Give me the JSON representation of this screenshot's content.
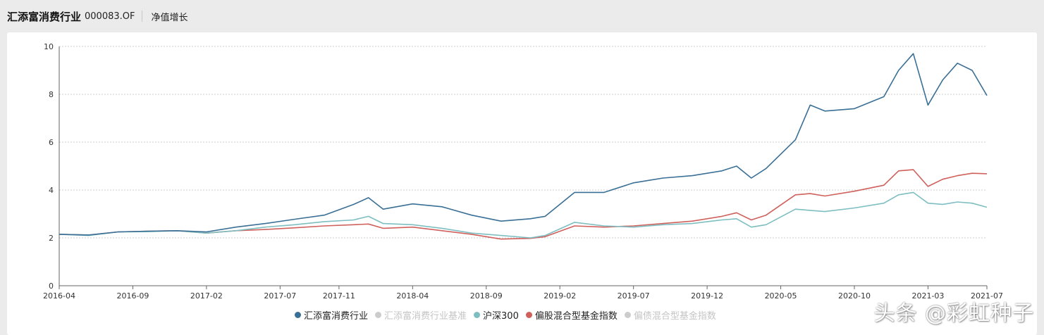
{
  "header": {
    "fund_name": "汇添富消费行业",
    "fund_code": "000083.OF",
    "tab": "净值增长"
  },
  "watermark": "头条 @彩虹种子",
  "colors": {
    "fund": "#3a6f96",
    "benchmark": "#cccccc",
    "hs300": "#7ebec1",
    "partial_equity": "#cf605c",
    "partial_bond": "#cccccc",
    "grid": "#cfcfcf",
    "axis": "#666666"
  },
  "legend": [
    {
      "label": "汇添富消费行业",
      "color": "#3a6f96",
      "active": true
    },
    {
      "label": "汇添富消费行业基准",
      "color": "#cccccc",
      "active": false
    },
    {
      "label": "沪深300",
      "color": "#7ebec1",
      "active": true
    },
    {
      "label": "偏股混合型基金指数",
      "color": "#cf605c",
      "active": true
    },
    {
      "label": "偏债混合型基金指数",
      "color": "#cccccc",
      "active": false
    }
  ],
  "chart_data": {
    "type": "line",
    "x_tick_labels": [
      "2016-04",
      "2016-09",
      "2017-02",
      "2017-07",
      "2017-11",
      "2018-04",
      "2018-09",
      "2019-02",
      "2019-07",
      "2019-12",
      "2020-05",
      "2020-10",
      "2021-03",
      "2021-07"
    ],
    "ylim": [
      0,
      10
    ],
    "y_ticks": [
      0,
      2,
      4,
      6,
      8,
      10
    ],
    "grid": true,
    "legend_position": "bottom",
    "x": [
      "2016-04",
      "2016-06",
      "2016-08",
      "2016-10",
      "2016-12",
      "2017-02",
      "2017-04",
      "2017-06",
      "2017-08",
      "2017-10",
      "2017-12",
      "2018-01",
      "2018-02",
      "2018-04",
      "2018-06",
      "2018-08",
      "2018-10",
      "2018-12",
      "2019-01",
      "2019-03",
      "2019-05",
      "2019-07",
      "2019-09",
      "2019-11",
      "2020-01",
      "2020-02",
      "2020-03",
      "2020-04",
      "2020-06",
      "2020-07",
      "2020-08",
      "2020-10",
      "2020-12",
      "2021-01",
      "2021-02",
      "2021-03",
      "2021-04",
      "2021-05",
      "2021-06",
      "2021-07"
    ],
    "series": [
      {
        "name": "汇添富消费行业",
        "values": [
          2.15,
          2.12,
          2.25,
          2.28,
          2.3,
          2.25,
          2.45,
          2.6,
          2.78,
          2.95,
          3.4,
          3.68,
          3.2,
          3.42,
          3.3,
          2.95,
          2.7,
          2.8,
          2.9,
          3.9,
          3.9,
          4.3,
          4.5,
          4.6,
          4.8,
          5.0,
          4.5,
          4.9,
          6.1,
          7.55,
          7.3,
          7.4,
          7.9,
          9.0,
          9.7,
          7.55,
          8.6,
          9.3,
          9.0,
          7.95
        ]
      },
      {
        "name": "沪深300",
        "values": [
          2.15,
          2.1,
          2.25,
          2.26,
          2.3,
          2.2,
          2.3,
          2.45,
          2.55,
          2.68,
          2.75,
          2.9,
          2.6,
          2.55,
          2.4,
          2.2,
          2.1,
          2.0,
          2.1,
          2.65,
          2.5,
          2.45,
          2.55,
          2.6,
          2.75,
          2.8,
          2.45,
          2.55,
          3.2,
          3.15,
          3.1,
          3.25,
          3.45,
          3.8,
          3.9,
          3.45,
          3.4,
          3.5,
          3.45,
          3.28
        ]
      },
      {
        "name": "偏股混合型基金指数",
        "values": [
          2.15,
          2.12,
          2.25,
          2.28,
          2.3,
          2.2,
          2.3,
          2.35,
          2.42,
          2.5,
          2.55,
          2.58,
          2.4,
          2.45,
          2.3,
          2.15,
          1.95,
          1.98,
          2.05,
          2.5,
          2.45,
          2.5,
          2.6,
          2.7,
          2.9,
          3.05,
          2.75,
          2.95,
          3.8,
          3.85,
          3.75,
          3.95,
          4.2,
          4.8,
          4.85,
          4.15,
          4.45,
          4.6,
          4.7,
          4.68
        ]
      }
    ]
  }
}
